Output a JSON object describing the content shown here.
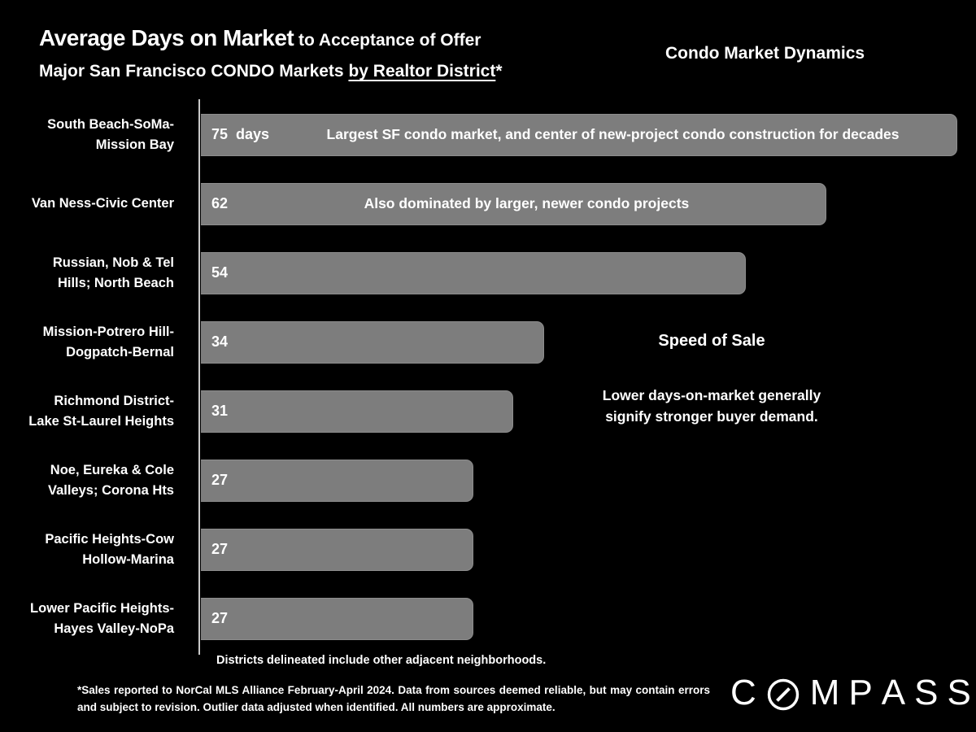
{
  "header": {
    "title_main": "Average Days on Market",
    "title_rest": " to Acceptance of Offer",
    "subtitle_prefix": "Major San Francisco CONDO Markets ",
    "subtitle_underlined": "by Realtor District",
    "subtitle_suffix": "*",
    "right_title": "Condo Market Dynamics"
  },
  "chart_data": {
    "type": "bar",
    "orientation": "horizontal",
    "title": "Average Days on Market to Acceptance of Offer",
    "subtitle": "Major San Francisco CONDO Markets by Realtor District*",
    "categories": [
      "South Beach-SoMa-\nMission Bay",
      "Van Ness-Civic Center",
      "Russian, Nob & Tel\nHills; North Beach",
      "Mission-Potrero Hill-\nDogpatch-Bernal",
      "Richmond District-\nLake St-Laurel Heights",
      "Noe, Eureka & Cole\nValleys; Corona Hts",
      "Pacific Heights-Cow\nHollow-Marina",
      "Lower Pacific Heights-\nHayes Valley-NoPa"
    ],
    "values": [
      75,
      62,
      54,
      34,
      31,
      27,
      27,
      27
    ],
    "value_unit": "days",
    "bar_labels": [
      "75  days",
      "62",
      "54",
      "34",
      "31",
      "27",
      "27",
      "27"
    ],
    "bar_annotations": [
      "Largest SF condo market, and center of new-project condo construction for decades",
      "Also dominated by larger, newer condo projects",
      "",
      "",
      "",
      "",
      "",
      ""
    ],
    "xlim": [
      0,
      75
    ],
    "grid": false,
    "legend": false,
    "bar_color": "#7d7d7d",
    "background_color": "#000000",
    "text_color": "#ffffff"
  },
  "aside": {
    "heading": "Speed of Sale",
    "body": "Lower days-on-market generally\nsignify stronger buyer demand."
  },
  "footer": {
    "districts_note": "Districts delineated include other adjacent neighborhoods.",
    "footnote": "*Sales reported to NorCal MLS Alliance February-April 2024. Data from sources deemed reliable, but may contain errors and subject to revision. Outlier data adjusted when identified. All numbers are approximate.",
    "brand": "COMPASS"
  }
}
